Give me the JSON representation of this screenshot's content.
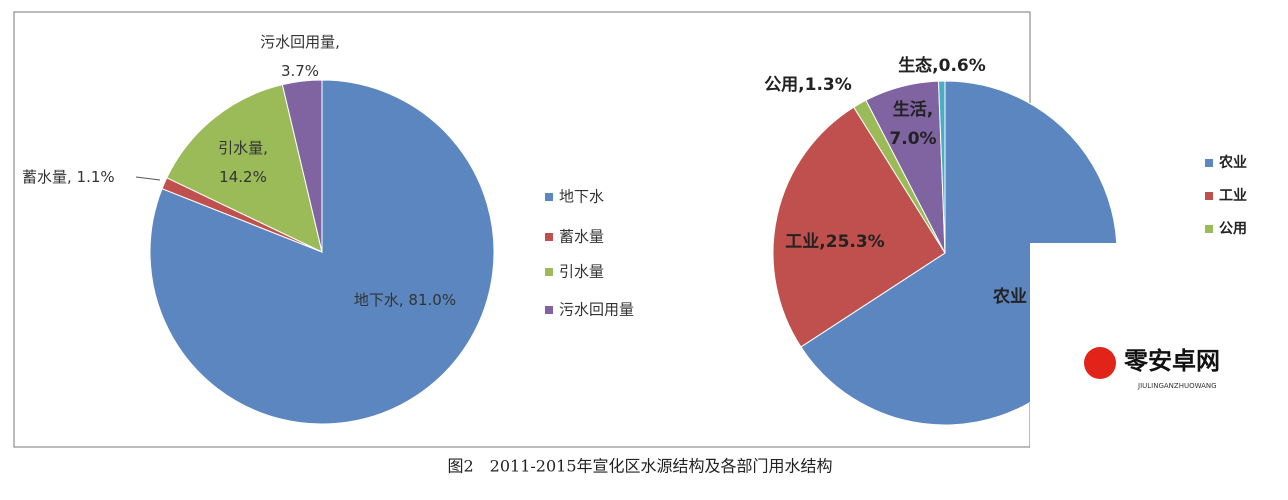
{
  "caption": "图2　2011-2015年宣化区水源结构及各部门用水结构",
  "watermark": {
    "name": "零安卓网",
    "subtitle": "JIULINGANZHUOWANG"
  },
  "chart_data": [
    {
      "type": "pie",
      "categories": [
        "地下水",
        "蓄水量",
        "引水量",
        "污水回用量"
      ],
      "values": [
        81.0,
        1.1,
        14.2,
        3.7
      ],
      "value_labels": [
        "地下水, 81.0%",
        "蓄水量, 1.1%",
        "引水量,\n14.2%",
        "污水回用量,\n3.7%"
      ],
      "colors": [
        "#5b86c0",
        "#c0504d",
        "#9bbb59",
        "#8064a2"
      ],
      "legend": "right"
    },
    {
      "type": "pie",
      "categories": [
        "农业",
        "工业",
        "公用",
        "生活",
        "生态"
      ],
      "values": [
        65.8,
        25.3,
        1.3,
        7.0,
        0.6
      ],
      "value_labels": [
        "农业",
        "工业,25.3%",
        "公用,1.3%",
        "生活,\n7.0%",
        "生态,0.6%"
      ],
      "colors": [
        "#5b86c0",
        "#c0504d",
        "#9bbb59",
        "#8064a2",
        "#4bacc6"
      ],
      "legend": "right"
    }
  ]
}
